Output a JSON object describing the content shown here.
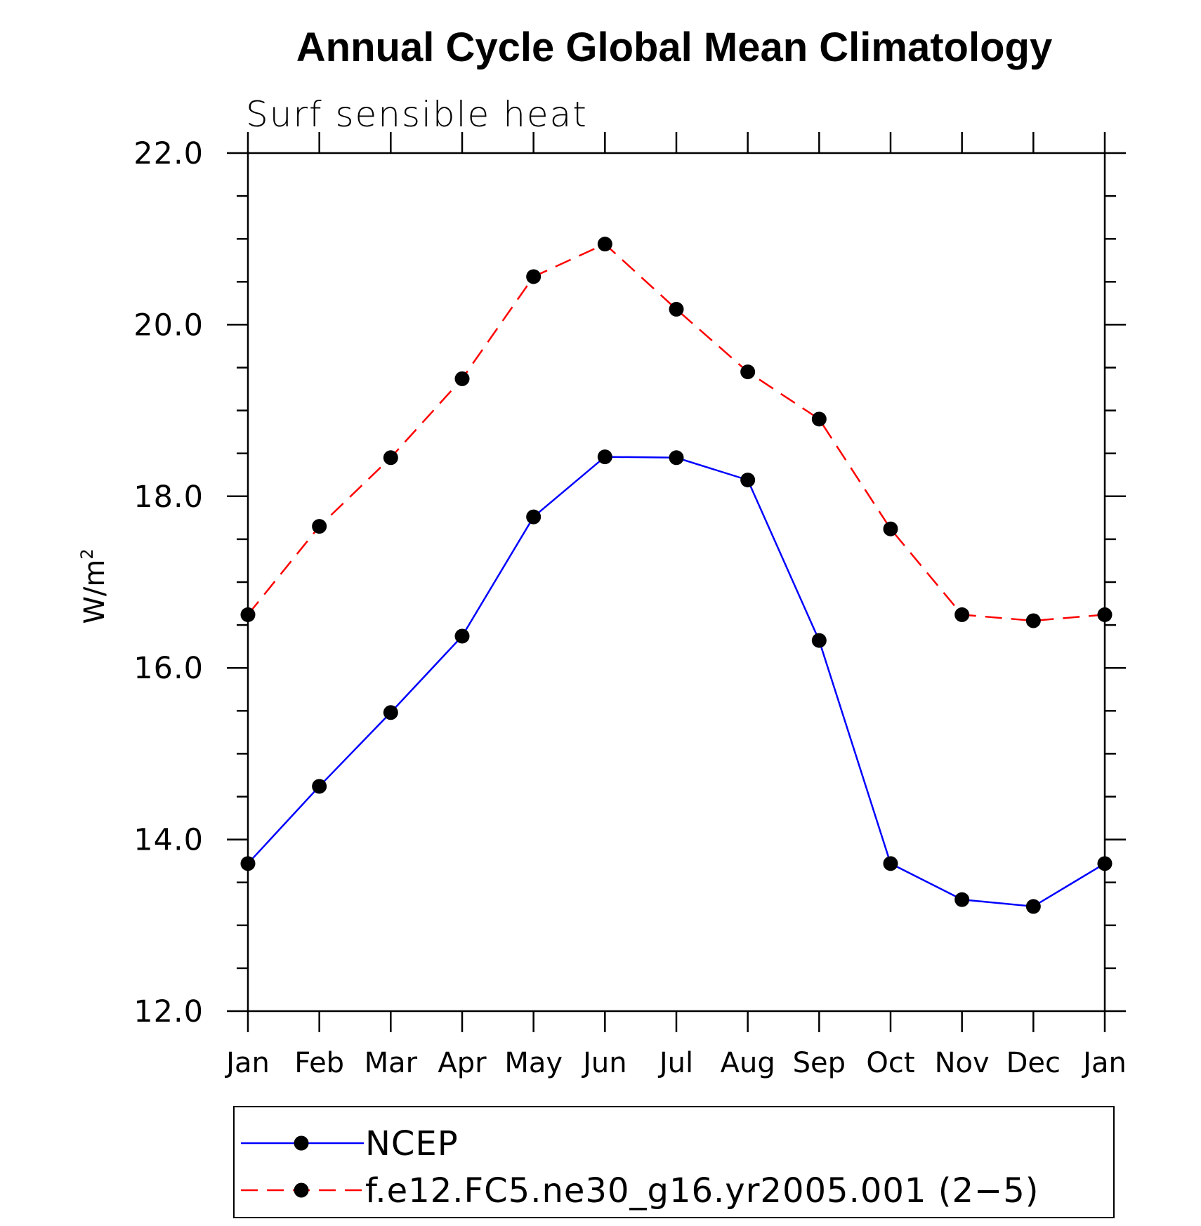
{
  "chart_data": {
    "type": "line",
    "title": "Annual Cycle Global Mean Climatology",
    "subtitle": "Surf sensible heat",
    "ylabel": "W/m",
    "ylabel_superscript": "2",
    "ylim": [
      12.0,
      22.0
    ],
    "yticks": [
      "12.0",
      "14.0",
      "16.0",
      "18.0",
      "20.0",
      "22.0"
    ],
    "categories": [
      "Jan",
      "Feb",
      "Mar",
      "Apr",
      "May",
      "Jun",
      "Jul",
      "Aug",
      "Sep",
      "Oct",
      "Nov",
      "Dec",
      "Jan"
    ],
    "series": [
      {
        "name": "NCEP",
        "color": "#0000ff",
        "dash": "solid",
        "values": [
          13.72,
          14.62,
          15.48,
          16.37,
          17.76,
          18.46,
          18.45,
          18.19,
          16.32,
          13.72,
          13.3,
          13.22,
          13.72
        ]
      },
      {
        "name": "f.e12.FC5.ne30_g16.yr2005.001 (2−5)",
        "color": "#ff0000",
        "dash": "dashed",
        "values": [
          16.62,
          17.65,
          18.45,
          19.37,
          20.56,
          20.94,
          20.18,
          19.45,
          18.9,
          17.62,
          16.62,
          16.55,
          16.62
        ]
      }
    ],
    "marker_color": "#000000",
    "legend_position": "bottom"
  }
}
